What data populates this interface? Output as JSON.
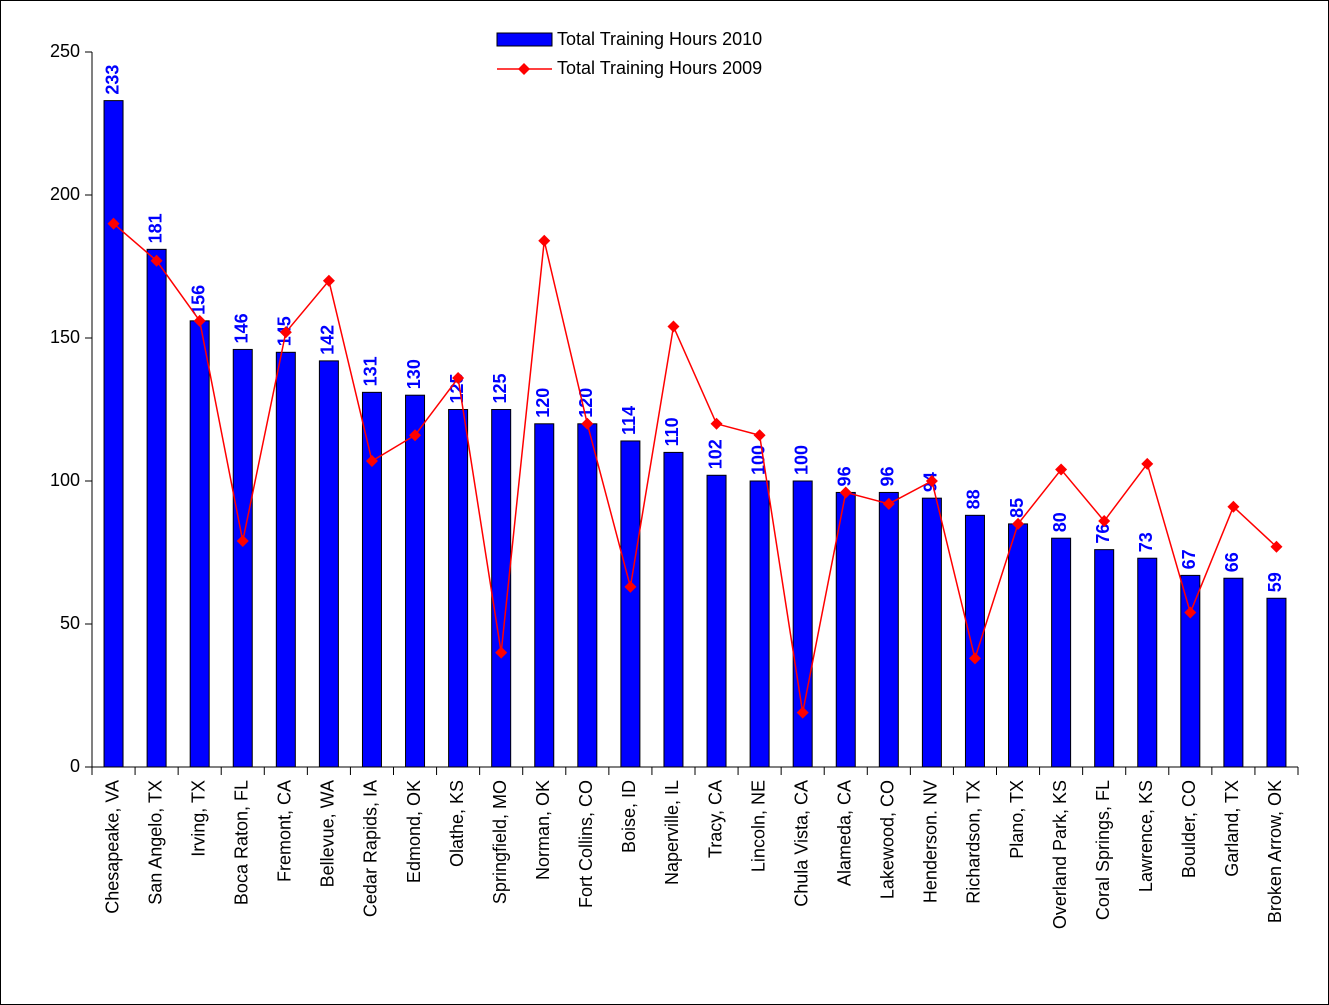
{
  "chart_data": {
    "type": "bar_line",
    "categories": [
      "Chesapeake, VA",
      "San Angelo, TX",
      "Irving, TX",
      "Boca Raton, FL",
      "Fremont, CA",
      "Bellevue, WA",
      "Cedar Rapids, IA",
      "Edmond, OK",
      "Olathe, KS",
      "Springfield, MO",
      "Norman, OK",
      "Fort Collins, CO",
      "Boise, ID",
      "Naperville, IL",
      "Tracy, CA",
      "Lincoln, NE",
      "Chula Vista, CA",
      "Alameda, CA",
      "Lakewood, CO",
      "Henderson. NV",
      "Richardson, TX",
      "Plano, TX",
      "Overland Park, KS",
      "Coral Springs, FL",
      "Lawrence, KS",
      "Boulder, CO",
      "Garland, TX",
      "Broken Arrow, OK"
    ],
    "series": [
      {
        "name": "Total Training Hours 2010",
        "type": "bar",
        "color": "#0000ff",
        "label_color": "#0000ff",
        "values": [
          233,
          181,
          156,
          146,
          145,
          142,
          131,
          130,
          125,
          125,
          120,
          120,
          114,
          110,
          102,
          100,
          100,
          96,
          96,
          94,
          88,
          85,
          80,
          76,
          73,
          67,
          66,
          59
        ]
      },
      {
        "name": "Total Training Hours 2009",
        "type": "line",
        "color": "#ff0000",
        "values": [
          190,
          177,
          156,
          79,
          152,
          170,
          107,
          116,
          136,
          40,
          184,
          120,
          63,
          154,
          120,
          116,
          19,
          96,
          92,
          100,
          38,
          85,
          104,
          86,
          106,
          54,
          91,
          77
        ]
      }
    ],
    "ylim": [
      0,
      250
    ],
    "yticks": [
      0,
      50,
      100,
      150,
      200,
      250
    ],
    "grid": false,
    "legend": "top"
  }
}
